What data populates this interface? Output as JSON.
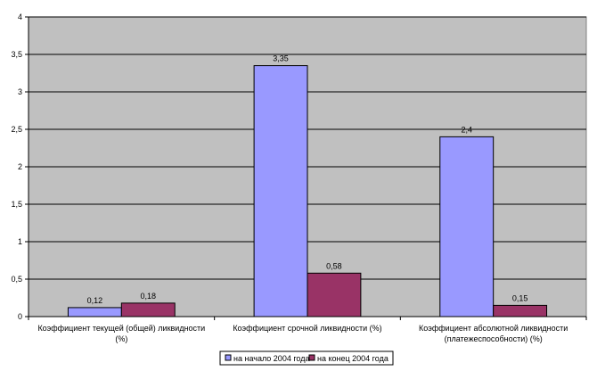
{
  "chart_data": {
    "type": "bar",
    "categories": [
      [
        "Коэффициент текущей (общей) ликвидности",
        "(%)"
      ],
      [
        "Коэффициент срочной ликвидности (%)"
      ],
      [
        "Коэффициент абсолютной ликвидности",
        "(платежеспособности) (%)"
      ]
    ],
    "series": [
      {
        "name": "на начало 2004 года",
        "values": [
          0.12,
          3.35,
          2.4
        ],
        "labels": [
          "0,12",
          "3,35",
          "2,4"
        ],
        "color": "#9999ff"
      },
      {
        "name": "на конец 2004 года",
        "values": [
          0.18,
          0.58,
          0.15
        ],
        "labels": [
          "0,18",
          "0,58",
          "0,15"
        ],
        "color": "#993366"
      }
    ],
    "ylim": [
      0,
      4
    ],
    "yticks": [
      0,
      0.5,
      1,
      1.5,
      2,
      2.5,
      3,
      3.5,
      4
    ],
    "ytick_labels": [
      "0",
      "0,5",
      "1",
      "1,5",
      "2",
      "2,5",
      "3",
      "3,5",
      "4"
    ],
    "grid": true,
    "plot_background": "#c0c0c0",
    "legend": "bottom"
  }
}
